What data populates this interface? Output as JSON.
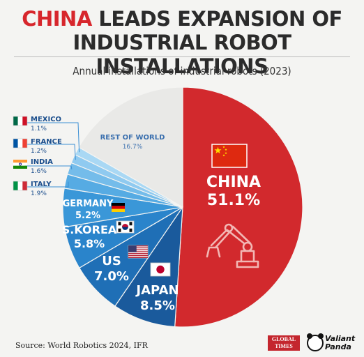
{
  "header": {
    "title_accent": "CHINA",
    "title_rest": " LEADS EXPANSION OF",
    "title_line2": "INDUSTRIAL ROBOT INSTALLATIONS",
    "subtitle": "Annual installations of industrial robots (2023)"
  },
  "footer": {
    "source": "Source: World Robotics 2024, IFR",
    "logo_global_times": "GLOBAL TIMES",
    "logo_valiant": "Valiant",
    "logo_panda": "Panda"
  },
  "colors": {
    "china": "#d2292d",
    "rest": "#e9e9e7",
    "blues": [
      "#a9d8f4",
      "#8fcaf0",
      "#74bcea",
      "#56abe3",
      "#3a97d8",
      "#2a84cb",
      "#1f6fb6",
      "#1a5a9c"
    ]
  },
  "icons": [
    "flag-china-icon",
    "flag-japan-icon",
    "flag-us-icon",
    "flag-korea-icon",
    "flag-germany-icon",
    "flag-italy-icon",
    "flag-india-icon",
    "flag-france-icon",
    "flag-mexico-icon",
    "robot-arm-icon"
  ],
  "chart_data": {
    "type": "pie",
    "title": "Annual installations of industrial robots (2023)",
    "slices": [
      {
        "label": "CHINA",
        "value": 51.1,
        "value_label": "51.1%"
      },
      {
        "label": "JAPAN",
        "value": 8.5,
        "value_label": "8.5%"
      },
      {
        "label": "US",
        "value": 7.0,
        "value_label": "7.0%"
      },
      {
        "label": "S.KOREA",
        "value": 5.8,
        "value_label": "5.8%"
      },
      {
        "label": "GERMANY",
        "value": 5.2,
        "value_label": "5.2%"
      },
      {
        "label": "ITALY",
        "value": 1.9,
        "value_label": "1.9%"
      },
      {
        "label": "INDIA",
        "value": 1.6,
        "value_label": "1.6%"
      },
      {
        "label": "FRANCE",
        "value": 1.2,
        "value_label": "1.2%"
      },
      {
        "label": "MEXICO",
        "value": 1.1,
        "value_label": "1.1%"
      },
      {
        "label": "REST OF WORLD",
        "value": 16.7,
        "value_label": "16.7%"
      }
    ]
  }
}
